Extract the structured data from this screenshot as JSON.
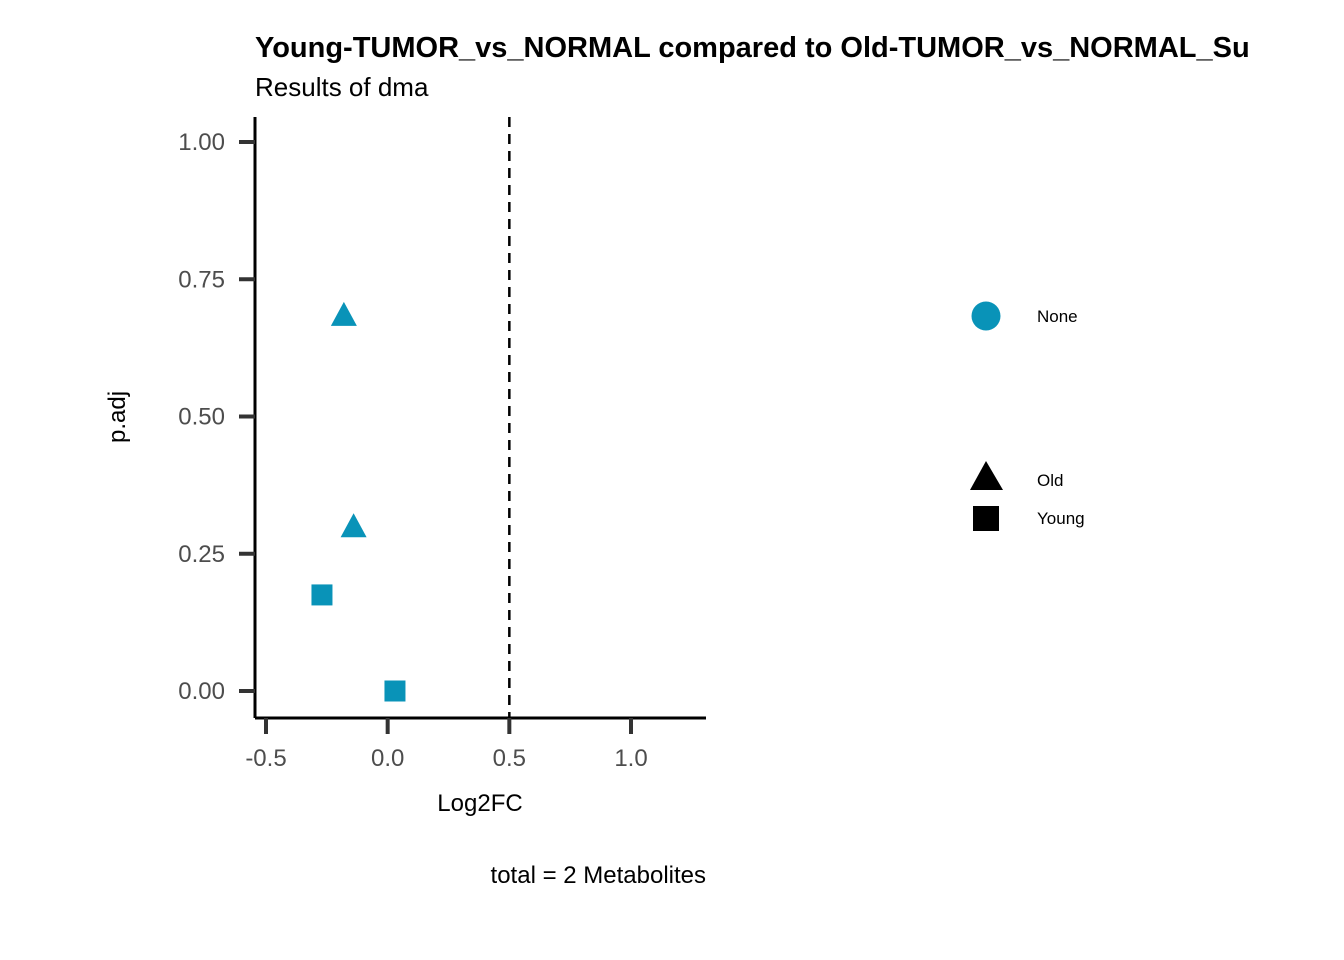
{
  "chart_data": {
    "type": "scatter",
    "title": "Young-TUMOR_vs_NORMAL compared to Old-TUMOR_vs_NORMAL_Su",
    "subtitle": "Results of dma",
    "xlabel": "Log2FC",
    "ylabel": "p.adj",
    "xlim": [
      -0.55,
      1.3
    ],
    "ylim": [
      -0.05,
      1.05
    ],
    "x_ticks": [
      -0.5,
      0.0,
      0.5,
      1.0
    ],
    "x_tick_labels": [
      "-0.5",
      "0.0",
      "0.5",
      "1.0"
    ],
    "y_ticks": [
      0.0,
      0.25,
      0.5,
      0.75,
      1.0
    ],
    "y_tick_labels": [
      "0.00",
      "0.25",
      "0.50",
      "0.75",
      "1.00"
    ],
    "vline": 0.5,
    "caption": "total = 2 Metabolites",
    "point_color": "#0993B8",
    "points": [
      {
        "x": -0.18,
        "y": 0.685,
        "group": "Old",
        "shape": "triangle",
        "color_group": "None"
      },
      {
        "x": -0.14,
        "y": 0.3,
        "group": "Old",
        "shape": "triangle",
        "color_group": "None"
      },
      {
        "x": -0.27,
        "y": 0.175,
        "group": "Young",
        "shape": "square",
        "color_group": "None"
      },
      {
        "x": 0.03,
        "y": 0.0,
        "group": "Young",
        "shape": "square",
        "color_group": "None"
      }
    ],
    "legend": {
      "placement": "right",
      "color_entries": [
        {
          "label": "None",
          "color": "#0993B8",
          "shape": "circle"
        }
      ],
      "shape_entries": [
        {
          "label": "Old",
          "shape": "triangle",
          "color": "#000000"
        },
        {
          "label": "Young",
          "shape": "square",
          "color": "#000000"
        }
      ]
    }
  }
}
